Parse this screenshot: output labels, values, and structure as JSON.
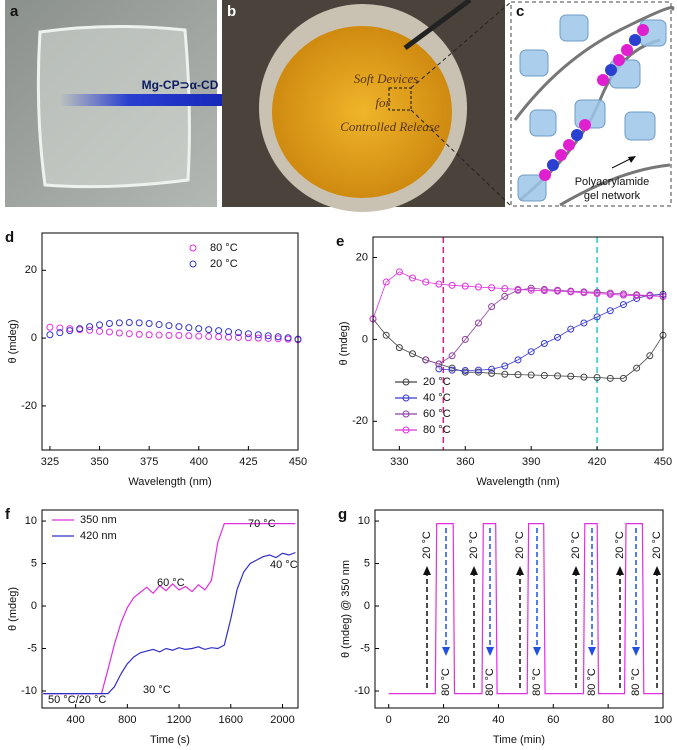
{
  "photos": {
    "a": {
      "panel": "a",
      "label": "Mg-CP⊃α-CD"
    },
    "b": {
      "panel": "b",
      "lines": [
        "Soft Devices",
        "for",
        "Controlled Release"
      ]
    },
    "c": {
      "panel": "c",
      "lines": [
        "Polyacrylamide",
        "gel network"
      ]
    }
  },
  "chart_data": [
    {
      "type": "scatter",
      "panel": "d",
      "x": [
        325,
        330,
        335,
        340,
        345,
        350,
        355,
        360,
        365,
        370,
        375,
        380,
        385,
        390,
        395,
        400,
        405,
        410,
        415,
        420,
        425,
        430,
        435,
        440,
        445,
        450
      ],
      "series": [
        {
          "name": "80 °C",
          "color": "#e030e0",
          "values": [
            3.2,
            3.0,
            2.8,
            2.5,
            2.3,
            2.0,
            1.8,
            1.5,
            1.3,
            1.1,
            1.0,
            0.9,
            0.8,
            0.8,
            0.7,
            0.6,
            0.5,
            0.4,
            0.3,
            0.2,
            0.1,
            0,
            -0.1,
            -0.2,
            -0.3,
            -0.5
          ]
        },
        {
          "name": "20 °C",
          "color": "#3535c8",
          "values": [
            1.0,
            1.6,
            2.2,
            2.8,
            3.4,
            3.9,
            4.3,
            4.5,
            4.6,
            4.5,
            4.3,
            4.0,
            3.7,
            3.4,
            3.1,
            2.8,
            2.5,
            2.2,
            1.9,
            1.6,
            1.3,
            1.0,
            0.7,
            0.4,
            0.1,
            -0.3
          ]
        }
      ],
      "xlim": [
        321,
        450
      ],
      "ylim": [
        -33,
        31
      ],
      "xticks": [
        325,
        350,
        375,
        400,
        425,
        450
      ],
      "yticks": [
        -20,
        0,
        20
      ],
      "xlabel": "Wavelength (nm)",
      "ylabel": "θ (mdeg)",
      "legend": "upper center"
    },
    {
      "type": "scatter",
      "panel": "e",
      "connected": true,
      "x": [
        318,
        324,
        330,
        336,
        342,
        348,
        354,
        360,
        366,
        372,
        378,
        384,
        390,
        396,
        402,
        408,
        414,
        420,
        426,
        432,
        438,
        444,
        450
      ],
      "series": [
        {
          "name": "20 °C",
          "color": "#444444",
          "values": [
            5,
            1,
            -2,
            -3.5,
            -5,
            -6,
            -7,
            -8,
            -8,
            -8.3,
            -8.5,
            -8.6,
            -8.7,
            -8.8,
            -8.9,
            -9,
            -9.2,
            -9.3,
            -9.5,
            -9.5,
            -7,
            -4,
            1
          ]
        },
        {
          "name": "40 °C",
          "color": "#3a3ad0",
          "values": [
            null,
            null,
            null,
            null,
            null,
            -7.2,
            -7.5,
            -7.6,
            -7.5,
            -7.3,
            -6.5,
            -5,
            -3,
            -1,
            0.5,
            2.5,
            4,
            5.5,
            7,
            8.5,
            10,
            10.8,
            11
          ]
        },
        {
          "name": "60 °C",
          "color": "#9040a0",
          "values": [
            null,
            null,
            null,
            null,
            -5,
            -6,
            -4,
            0,
            4,
            8,
            10.5,
            12,
            12.5,
            12.2,
            12,
            11.8,
            11.6,
            11.5,
            11.3,
            11.1,
            10.9,
            10.7,
            10.5
          ]
        },
        {
          "name": "80 °C",
          "color": "#e030e0",
          "values": [
            5,
            14,
            16.5,
            15,
            14,
            13.5,
            13.2,
            13,
            12.8,
            12.6,
            12.4,
            12.2,
            12,
            11.9,
            11.8,
            11.6,
            11.4,
            11.2,
            11,
            10.8,
            10.7,
            10.6,
            10.5
          ]
        }
      ],
      "vlines": [
        {
          "x": 350,
          "color": "#e0207f"
        },
        {
          "x": 420,
          "color": "#2cc7c7"
        }
      ],
      "xlim": [
        318,
        450
      ],
      "ylim": [
        -27,
        25
      ],
      "xticks": [
        330,
        360,
        390,
        420,
        450
      ],
      "yticks": [
        -20,
        0,
        20
      ],
      "xlabel": "Wavelength (nm)",
      "ylabel": "θ (mdeg)",
      "legend": "lower left"
    },
    {
      "type": "line",
      "panel": "f",
      "x": [
        150,
        200,
        250,
        300,
        350,
        400,
        450,
        500,
        550,
        600,
        650,
        700,
        750,
        800,
        850,
        900,
        950,
        1000,
        1050,
        1100,
        1150,
        1200,
        1250,
        1300,
        1350,
        1400,
        1450,
        1500,
        1550,
        1600,
        1650,
        1700,
        1750,
        1800,
        1850,
        1900,
        1950,
        2000,
        2050,
        2100
      ],
      "series": [
        {
          "name": "350 nm",
          "color": "#e030e0",
          "values": [
            -10.3,
            -10.3,
            -10.3,
            -10.3,
            -10.3,
            -10.3,
            -10.3,
            -10.3,
            -10.3,
            -10.3,
            -7.5,
            -4.5,
            -2,
            -0.2,
            1,
            1.6,
            2.2,
            1.5,
            2.4,
            1.8,
            2.6,
            1.9,
            2.3,
            1.7,
            2.5,
            1.9,
            3,
            7.5,
            9.7,
            9.7,
            9.7,
            9.7,
            9.7,
            9.7,
            9.7,
            9.7,
            9.7,
            9.7,
            9.7,
            9.7
          ]
        },
        {
          "name": "420 nm",
          "color": "#3030c8",
          "values": [
            -10.3,
            -10.3,
            -10.3,
            -10.3,
            -10.3,
            -10.3,
            -10.3,
            -10.3,
            -10.3,
            -10.3,
            -10.3,
            -9.5,
            -8,
            -6.8,
            -6,
            -5.5,
            -5.3,
            -5.1,
            -5.4,
            -5,
            -5.2,
            -4.9,
            -5.1,
            -5,
            -4.8,
            -5.1,
            -4.9,
            -5,
            -4.6,
            -1.5,
            2,
            4,
            5,
            5.4,
            5.8,
            6,
            5.7,
            6.2,
            6,
            6.3
          ]
        }
      ],
      "annotations": [
        "60 °C",
        "30 °C",
        "70 °C",
        "40 °C",
        "50 °C/20 °C"
      ],
      "xlim": [
        140,
        2120
      ],
      "ylim": [
        -12,
        11.3
      ],
      "xticks": [
        400,
        800,
        1200,
        1600,
        2000
      ],
      "yticks": [
        -10,
        -5,
        0,
        5,
        10
      ],
      "xlabel": "Time (s)",
      "ylabel": "θ (mdeg)",
      "legend": "upper left"
    },
    {
      "type": "line",
      "panel": "g",
      "x": [
        0,
        17,
        17.5,
        23.5,
        24,
        34,
        34.5,
        39,
        39.5,
        50.5,
        51,
        56.5,
        57,
        71,
        71.5,
        76,
        76.5,
        86,
        86.5,
        92.5,
        93,
        100
      ],
      "series": [
        {
          "color": "#e030e0",
          "values": [
            -10.3,
            -10.3,
            9.7,
            9.7,
            -10.3,
            -10.3,
            9.7,
            9.7,
            -10.3,
            -10.3,
            9.7,
            9.7,
            -10.3,
            -10.3,
            9.7,
            9.7,
            -10.3,
            -10.3,
            9.7,
            9.7,
            -10.3,
            -10.3
          ]
        }
      ],
      "annotations": [
        "20 °C",
        "20 °C",
        "20 °C",
        "20 °C",
        "20 °C",
        "20 °C",
        "80 °C",
        "80 °C",
        "80 °C",
        "80 °C",
        "80 °C"
      ],
      "xlim": [
        -5,
        100
      ],
      "ylim": [
        -12,
        11.3
      ],
      "xticks": [
        0,
        20,
        40,
        60,
        80,
        100
      ],
      "yticks": [
        -10,
        -5,
        0,
        5,
        10
      ],
      "xlabel": "Time (min)",
      "ylabel": "θ (mdeg) @ 350 nm"
    }
  ]
}
